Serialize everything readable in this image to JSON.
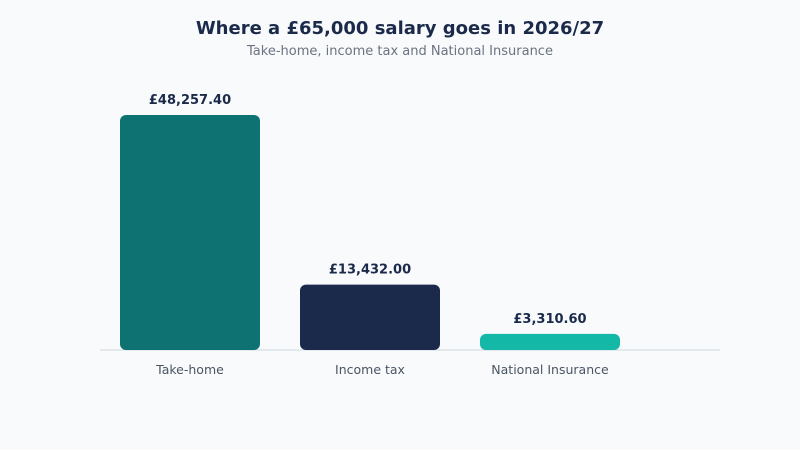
{
  "chart_data": {
    "type": "bar",
    "title": "Where a £65,000 salary goes in 2026/27",
    "subtitle": "Take-home, income tax and National Insurance",
    "categories": [
      "Take-home",
      "Income tax",
      "National Insurance"
    ],
    "values": [
      48257.4,
      13432.0,
      3310.6
    ],
    "value_labels": [
      "£48,257.40",
      "£13,432.00",
      "£3,310.60"
    ],
    "colors": [
      "#0e7272",
      "#1b2a4a",
      "#14b8a6"
    ],
    "ylim": [
      0,
      48257.4
    ],
    "grid": false,
    "legend": "none",
    "xlabel": "",
    "ylabel": ""
  }
}
